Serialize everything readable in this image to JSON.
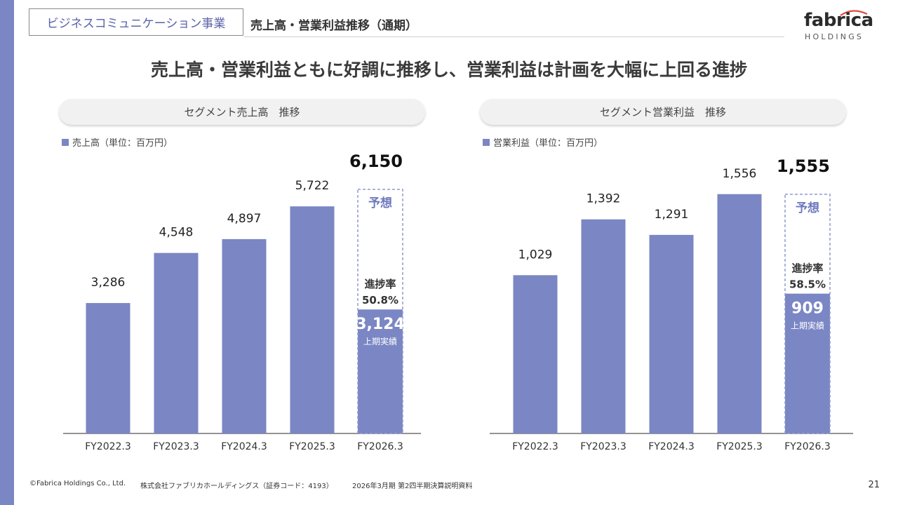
{
  "header": {
    "segment": "ビジネスコミュニケーション事業",
    "topic": "売上高・営業利益推移（通期）"
  },
  "logo": {
    "word": "fabrica",
    "sub": "HOLDINGS"
  },
  "headline": "売上高・営業利益ともに好調に推移し、営業利益は計画を大幅に上回る進捗",
  "colors": {
    "accent": "#7b86c4",
    "dashed": "#8f98cf"
  },
  "chart_data": [
    {
      "type": "bar",
      "title": "セグメント売上高　推移",
      "legend": "売上高（単位：百万円）",
      "categories": [
        "FY2022.3",
        "FY2023.3",
        "FY2024.3",
        "FY2025.3",
        "FY2026.3"
      ],
      "values": [
        3286,
        4548,
        4897,
        5722,
        3124
      ],
      "value_labels": [
        "3,286",
        "4,548",
        "4,897",
        "5,722",
        "3,124"
      ],
      "ylim": [
        0,
        6150
      ],
      "forecast": {
        "value": 6150,
        "label": "6,150",
        "tag": "予想",
        "progress_title": "進捗率",
        "progress_value": "50.8%",
        "actual_caption": "上期実績"
      }
    },
    {
      "type": "bar",
      "title": "セグメント営業利益　推移",
      "legend": "営業利益（単位：百万円）",
      "categories": [
        "FY2022.3",
        "FY2023.3",
        "FY2024.3",
        "FY2025.3",
        "FY2026.3"
      ],
      "values": [
        1029,
        1392,
        1291,
        1556,
        909
      ],
      "value_labels": [
        "1,029",
        "1,392",
        "1,291",
        "1,556",
        "909"
      ],
      "ylim": [
        0,
        1555
      ],
      "forecast": {
        "value": 1555,
        "label": "1,555",
        "tag": "予想",
        "progress_title": "進捗率",
        "progress_value": "58.5%",
        "actual_caption": "上期実績"
      }
    }
  ],
  "footer": {
    "copyright": "©Fabrica Holdings Co., Ltd.",
    "company": "株式会社ファブリカホールディングス（証券コード：4193）",
    "doc": "2026年3月期 第2四半期決算説明資料",
    "page": "21"
  }
}
